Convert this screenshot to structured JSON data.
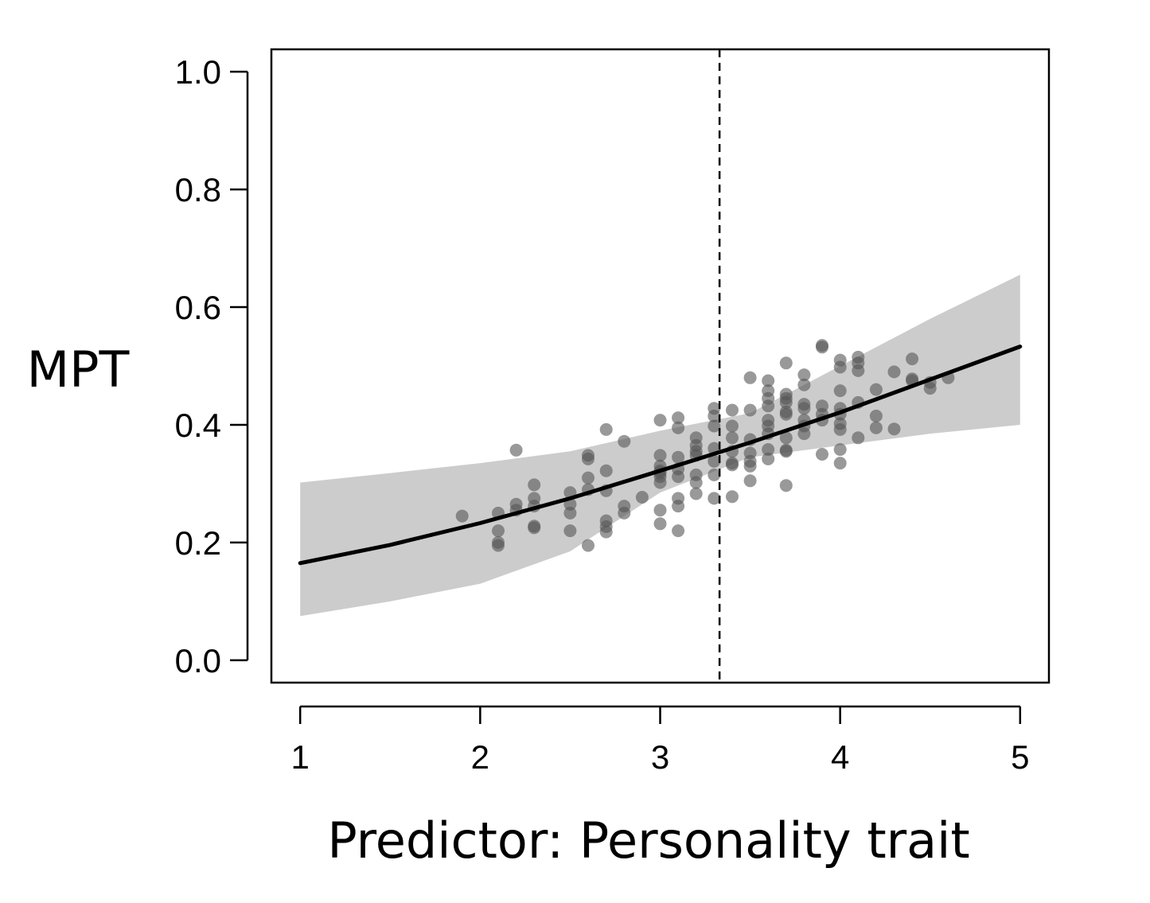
{
  "chart_data": {
    "type": "scatter",
    "title": "",
    "xlabel": "Predictor: Personality trait",
    "ylabel": "MPT",
    "xlim": [
      0.84,
      5.16
    ],
    "ylim": [
      -0.038,
      1.038
    ],
    "x_ticks": [
      "1",
      "2",
      "3",
      "4",
      "5"
    ],
    "y_ticks": [
      "0.0",
      "0.2",
      "0.4",
      "0.6",
      "0.8",
      "1.0"
    ],
    "vline_x": 3.33,
    "vline_style": "dashed",
    "grid": false,
    "legend": "none",
    "colors": {
      "band": "#cccccc",
      "line": "#000000",
      "point": "#555555",
      "frame": "#000000"
    },
    "fit_line": {
      "x": [
        1.0,
        1.5,
        2.0,
        2.5,
        3.0,
        3.5,
        4.0,
        4.5,
        5.0
      ],
      "y": [
        0.165,
        0.196,
        0.233,
        0.275,
        0.322,
        0.37,
        0.421,
        0.477,
        0.533
      ]
    },
    "confidence_band": {
      "x": [
        1.0,
        1.5,
        2.0,
        2.5,
        3.0,
        3.5,
        4.0,
        4.5,
        5.0
      ],
      "lower": [
        0.075,
        0.1,
        0.13,
        0.185,
        0.285,
        0.345,
        0.365,
        0.385,
        0.4
      ],
      "upper": [
        0.302,
        0.318,
        0.335,
        0.355,
        0.39,
        0.42,
        0.5,
        0.58,
        0.655
      ]
    },
    "points": [
      [
        1.9,
        0.245
      ],
      [
        2.1,
        0.195
      ],
      [
        2.1,
        0.2
      ],
      [
        2.1,
        0.22
      ],
      [
        2.1,
        0.25
      ],
      [
        2.2,
        0.255
      ],
      [
        2.2,
        0.265
      ],
      [
        2.2,
        0.357
      ],
      [
        2.3,
        0.225
      ],
      [
        2.3,
        0.228
      ],
      [
        2.3,
        0.262
      ],
      [
        2.3,
        0.275
      ],
      [
        2.3,
        0.298
      ],
      [
        2.5,
        0.22
      ],
      [
        2.5,
        0.25
      ],
      [
        2.5,
        0.265
      ],
      [
        2.5,
        0.285
      ],
      [
        2.6,
        0.195
      ],
      [
        2.6,
        0.29
      ],
      [
        2.6,
        0.31
      ],
      [
        2.6,
        0.342
      ],
      [
        2.6,
        0.348
      ],
      [
        2.7,
        0.218
      ],
      [
        2.7,
        0.227
      ],
      [
        2.7,
        0.237
      ],
      [
        2.7,
        0.288
      ],
      [
        2.7,
        0.322
      ],
      [
        2.7,
        0.392
      ],
      [
        2.8,
        0.25
      ],
      [
        2.8,
        0.262
      ],
      [
        2.8,
        0.372
      ],
      [
        2.9,
        0.277
      ],
      [
        3.0,
        0.232
      ],
      [
        3.0,
        0.255
      ],
      [
        3.0,
        0.302
      ],
      [
        3.0,
        0.312
      ],
      [
        3.0,
        0.318
      ],
      [
        3.0,
        0.322
      ],
      [
        3.0,
        0.33
      ],
      [
        3.0,
        0.348
      ],
      [
        3.0,
        0.408
      ],
      [
        3.1,
        0.22
      ],
      [
        3.1,
        0.262
      ],
      [
        3.1,
        0.275
      ],
      [
        3.1,
        0.312
      ],
      [
        3.1,
        0.325
      ],
      [
        3.1,
        0.345
      ],
      [
        3.1,
        0.395
      ],
      [
        3.1,
        0.412
      ],
      [
        3.2,
        0.283
      ],
      [
        3.2,
        0.302
      ],
      [
        3.2,
        0.315
      ],
      [
        3.2,
        0.348
      ],
      [
        3.2,
        0.355
      ],
      [
        3.2,
        0.365
      ],
      [
        3.2,
        0.378
      ],
      [
        3.3,
        0.275
      ],
      [
        3.3,
        0.315
      ],
      [
        3.3,
        0.338
      ],
      [
        3.3,
        0.36
      ],
      [
        3.3,
        0.398
      ],
      [
        3.3,
        0.415
      ],
      [
        3.3,
        0.428
      ],
      [
        3.4,
        0.278
      ],
      [
        3.4,
        0.332
      ],
      [
        3.4,
        0.335
      ],
      [
        3.4,
        0.355
      ],
      [
        3.4,
        0.378
      ],
      [
        3.4,
        0.398
      ],
      [
        3.4,
        0.425
      ],
      [
        3.5,
        0.305
      ],
      [
        3.5,
        0.33
      ],
      [
        3.5,
        0.338
      ],
      [
        3.5,
        0.352
      ],
      [
        3.5,
        0.375
      ],
      [
        3.5,
        0.425
      ],
      [
        3.5,
        0.48
      ],
      [
        3.6,
        0.342
      ],
      [
        3.6,
        0.358
      ],
      [
        3.6,
        0.385
      ],
      [
        3.6,
        0.398
      ],
      [
        3.6,
        0.408
      ],
      [
        3.6,
        0.432
      ],
      [
        3.6,
        0.445
      ],
      [
        3.6,
        0.458
      ],
      [
        3.6,
        0.475
      ],
      [
        3.7,
        0.297
      ],
      [
        3.7,
        0.355
      ],
      [
        3.7,
        0.357
      ],
      [
        3.7,
        0.378
      ],
      [
        3.7,
        0.418
      ],
      [
        3.7,
        0.422
      ],
      [
        3.7,
        0.438
      ],
      [
        3.7,
        0.445
      ],
      [
        3.7,
        0.452
      ],
      [
        3.7,
        0.505
      ],
      [
        3.8,
        0.385
      ],
      [
        3.8,
        0.398
      ],
      [
        3.8,
        0.408
      ],
      [
        3.8,
        0.428
      ],
      [
        3.8,
        0.435
      ],
      [
        3.8,
        0.468
      ],
      [
        3.8,
        0.485
      ],
      [
        3.9,
        0.35
      ],
      [
        3.9,
        0.408
      ],
      [
        3.9,
        0.418
      ],
      [
        3.9,
        0.432
      ],
      [
        3.9,
        0.532
      ],
      [
        3.9,
        0.535
      ],
      [
        4.0,
        0.335
      ],
      [
        4.0,
        0.358
      ],
      [
        4.0,
        0.392
      ],
      [
        4.0,
        0.402
      ],
      [
        4.0,
        0.418
      ],
      [
        4.0,
        0.428
      ],
      [
        4.0,
        0.458
      ],
      [
        4.0,
        0.498
      ],
      [
        4.0,
        0.51
      ],
      [
        4.1,
        0.378
      ],
      [
        4.1,
        0.438
      ],
      [
        4.1,
        0.492
      ],
      [
        4.1,
        0.505
      ],
      [
        4.1,
        0.515
      ],
      [
        4.2,
        0.395
      ],
      [
        4.2,
        0.415
      ],
      [
        4.2,
        0.46
      ],
      [
        4.3,
        0.393
      ],
      [
        4.3,
        0.49
      ],
      [
        4.4,
        0.475
      ],
      [
        4.4,
        0.478
      ],
      [
        4.4,
        0.512
      ],
      [
        4.5,
        0.462
      ],
      [
        4.5,
        0.472
      ],
      [
        4.6,
        0.48
      ]
    ]
  }
}
